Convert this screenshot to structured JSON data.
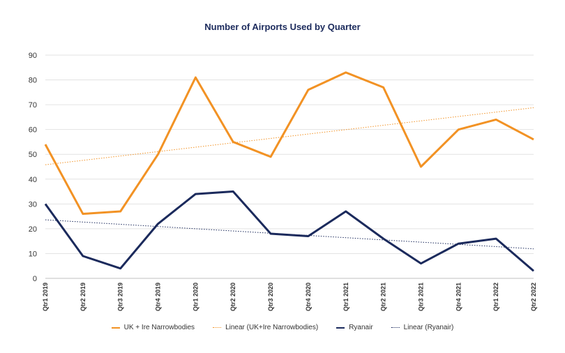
{
  "chart_data": {
    "type": "line",
    "title": "Number of Airports Used by Quarter",
    "categories": [
      "Qtr1 2019",
      "Qtr2 2019",
      "Qtr3 2019",
      "Qtr4 2019",
      "Qtr1 2020",
      "Qtr2 2020",
      "Qtr3 2020",
      "Qtr4 2020",
      "Qtr1 2021",
      "Qtr2 2021",
      "Qtr3 2021",
      "Qtr4 2021",
      "Qtr1 2022",
      "Qtr2 2022"
    ],
    "ylim": [
      0,
      90
    ],
    "yticks": [
      0,
      10,
      20,
      30,
      40,
      50,
      60,
      70,
      80,
      90
    ],
    "grid": true,
    "legend_position": "bottom",
    "series": [
      {
        "name": "UK + Ire Narrowbodies",
        "values": [
          54,
          26,
          27,
          50,
          81,
          55,
          49,
          76,
          83,
          77,
          45,
          60,
          64,
          56
        ],
        "color": "#f29224",
        "style": "solid"
      },
      {
        "name": "Ryanair",
        "values": [
          30,
          9,
          4,
          22,
          34,
          35,
          18,
          17,
          27,
          16,
          6,
          14,
          16,
          3
        ],
        "color": "#1b2a5c",
        "style": "solid"
      }
    ],
    "trendlines": [
      {
        "name": "Linear (UK+Ire Narrowbodies)",
        "start": 45.8,
        "end": 68.8,
        "color": "#f29224",
        "style": "dotted"
      },
      {
        "name": "Linear (Ryanair)",
        "start": 23.6,
        "end": 11.9,
        "color": "#1b2a5c",
        "style": "dotted"
      }
    ]
  }
}
